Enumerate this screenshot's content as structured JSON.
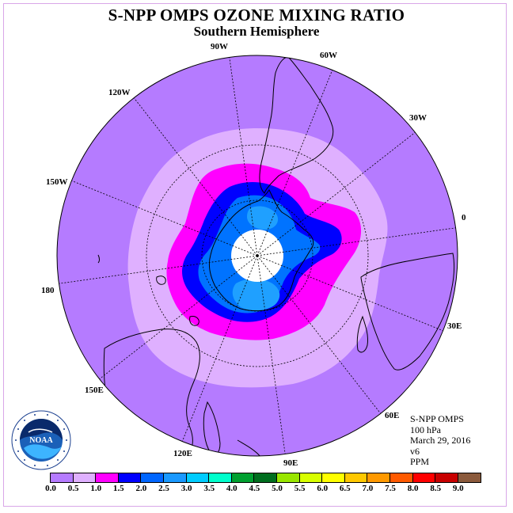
{
  "header": {
    "title": "S-NPP OMPS OZONE MIXING RATIO",
    "subtitle": "Southern Hemisphere"
  },
  "map": {
    "projection": "polar stereographic, south pole",
    "longitude_labels": [
      "90W",
      "60W",
      "30W",
      "0",
      "30E",
      "60E",
      "90E",
      "120E",
      "150E",
      "180",
      "150W",
      "120W"
    ],
    "ozone_fill_levels_ppm": [
      0.5,
      1.0,
      1.5,
      2.0,
      2.5,
      3.0
    ]
  },
  "info": {
    "instrument": "S-NPP OMPS",
    "level": "100 hPa",
    "date": "March 29, 2016",
    "version": "v6",
    "units": "PPM"
  },
  "colorbar": {
    "colors": [
      "#b57bff",
      "#dfb0ff",
      "#ff00ff",
      "#0000ff",
      "#0066ff",
      "#1a99ff",
      "#00ccff",
      "#00ffcc",
      "#00a030",
      "#006e1e",
      "#99e600",
      "#d8ff00",
      "#ffff00",
      "#ffc800",
      "#ff9900",
      "#ff5a00",
      "#ff0000",
      "#c80000",
      "#8b5a3c"
    ],
    "ticks": [
      "0.0",
      "0.5",
      "1.0",
      "1.5",
      "2.0",
      "2.5",
      "3.0",
      "3.5",
      "4.0",
      "4.5",
      "5.0",
      "5.5",
      "6.0",
      "6.5",
      "7.0",
      "7.5",
      "8.0",
      "8.5",
      "9.0"
    ]
  },
  "logo": {
    "text": "NOAA",
    "ring_text": "NATIONAL OCEANIC AND ATMOSPHERIC ADMINISTRATION · U.S. DEPARTMENT OF COMMERCE"
  }
}
